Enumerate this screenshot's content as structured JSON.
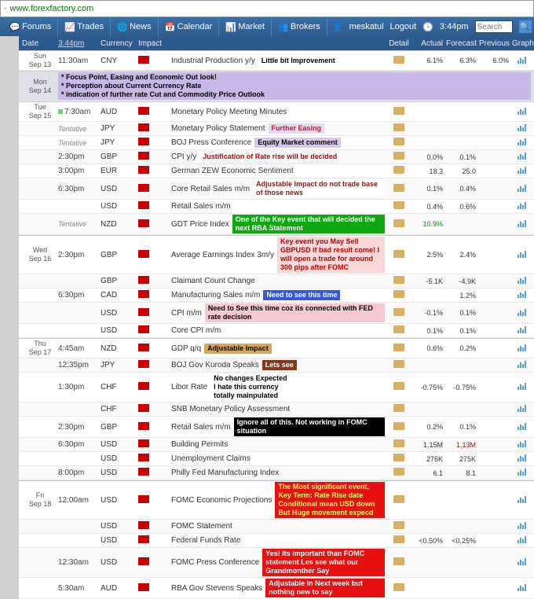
{
  "url": "www.forexfactory.com",
  "nav": {
    "items": [
      "Forums",
      "Trades",
      "News",
      "Calendar",
      "Market",
      "Brokers"
    ],
    "user": "meskatul",
    "logout": "Logout",
    "time": "3:44pm",
    "search_placeholder": "Search"
  },
  "columns": {
    "date": "Date",
    "time": "3:44pm",
    "currency": "Currency",
    "impact": "Impact",
    "detail": "Detail",
    "actual": "Actual",
    "forecast": "Forecast",
    "previous": "Previous",
    "graph": "Graph"
  },
  "days": [
    {
      "wd": "Sun",
      "dt": "Sep 13",
      "rows": [
        {
          "time": "11:30am",
          "cur": "CNY",
          "imp": "red",
          "event": "Industrial Production y/y",
          "annot": {
            "text": "Little bit Improvement",
            "bg": "#ffffff",
            "fg": "#000000",
            "bold": true
          },
          "actual": "6.1%",
          "forecast": "6.3%",
          "previous": "6.0%"
        }
      ]
    },
    {
      "wd": "Mon",
      "dt": "Sep 14",
      "mon": true,
      "rows": [
        {
          "annot_only": true,
          "annot": {
            "text": "* Focus Point, Easing and Economic Out look!\n* Perception about Current Currency Rate\n* indication of further rate Cut and Commodity Price Outlook",
            "bg": "#c8b8e8",
            "fg": "#000000"
          }
        }
      ]
    },
    {
      "wd": "Tue",
      "dt": "Sep 15",
      "rows": [
        {
          "time": "7:30am",
          "dot": "#7c7",
          "cur": "AUD",
          "imp": "red",
          "event": "Monetary Policy Meeting Minutes"
        },
        {
          "time": "Tentative",
          "tent": true,
          "cur": "JPY",
          "imp": "red",
          "event": "Monetary Policy Statement",
          "annot": {
            "text": "Further Easing",
            "bg": "#e8d8f0",
            "fg": "#c02020"
          }
        },
        {
          "time": "Tentative",
          "tent": true,
          "cur": "JPY",
          "imp": "red",
          "event": "BOJ Press Conference",
          "annot": {
            "text": "Equity Market comment",
            "bg": "#d8c8e8",
            "fg": "#000000"
          }
        },
        {
          "time": "2:30pm",
          "cur": "GBP",
          "imp": "red",
          "event": "CPI y/y",
          "annot": {
            "text": "Justification of Rate rise will be decided",
            "bg": "#ffffff",
            "fg": "#c00000"
          },
          "actual": "0.0%",
          "forecast": "0.1%"
        },
        {
          "time": "3:00pm",
          "cur": "EUR",
          "imp": "red",
          "event": "German ZEW Economic Sentiment",
          "actual": "18.3",
          "forecast": "25.0"
        },
        {
          "time": "6:30pm",
          "cur": "USD",
          "imp": "red",
          "event": "Core Retail Sales m/m",
          "annot": {
            "text": "Adjustable Impact  do not trade base of those news",
            "bg": "#ffffff",
            "fg": "#8a1a1a"
          },
          "actual": "0.1%",
          "forecast": "0.4%"
        },
        {
          "time": "",
          "cur": "USD",
          "imp": "red",
          "event": "Retail Sales m/m",
          "actual": "0.4%",
          "forecast": "0.6%"
        },
        {
          "time": "Tentative",
          "tent": true,
          "cur": "NZD",
          "imp": "red",
          "event": "GDT Price Index",
          "annot": {
            "text": "One of the Key event that will decided the next RBA Statement",
            "bg": "#10a810",
            "fg": "#ffffff"
          },
          "actual": "10.9%",
          "ac_green": true
        }
      ]
    },
    {
      "wd": "Wed",
      "dt": "Sep 16",
      "rows": [
        {
          "time": "2:30pm",
          "cur": "GBP",
          "imp": "red",
          "event": "Average Earnings Index 3m/y",
          "annot": {
            "text": "Key event you May Sell GBPUSD if bad result come! I will open a trade for around 300 pips after FOMC",
            "bg": "#f8d8d8",
            "fg": "#c00000"
          },
          "actual": "2.5%",
          "forecast": "2.4%"
        },
        {
          "time": "",
          "cur": "GBP",
          "imp": "red",
          "event": "Claimant Count Change",
          "actual": "-5.1K",
          "forecast": "-4.9K"
        },
        {
          "time": "6:30pm",
          "cur": "CAD",
          "imp": "red",
          "event": "Manufacturing Sales m/m",
          "annot": {
            "text": "Need to see this time",
            "bg": "#3858d8",
            "fg": "#ffffff"
          },
          "forecast": "1.2%"
        },
        {
          "time": "",
          "cur": "USD",
          "imp": "red",
          "event": "CPI m/m",
          "annot": {
            "text": "Need to See this time coz its connected with FED rate decision",
            "bg": "#f8c8d0",
            "fg": "#000000"
          },
          "actual": "-0.1%",
          "forecast": "0.1%"
        },
        {
          "time": "",
          "cur": "USD",
          "imp": "red",
          "event": "Core CPI m/m",
          "actual": "0.1%",
          "forecast": "0.1%"
        }
      ]
    },
    {
      "wd": "Thu",
      "dt": "Sep 17",
      "rows": [
        {
          "time": "4:45am",
          "cur": "NZD",
          "imp": "red",
          "event": "GDP q/q",
          "annot": {
            "text": "Adjustable Impact",
            "bg": "#d8a858",
            "fg": "#000000"
          },
          "actual": "0.6%",
          "forecast": "0.2%"
        },
        {
          "time": "12:35pm",
          "cur": "JPY",
          "imp": "red",
          "event": "BOJ Gov Kuroda Speaks",
          "annot": {
            "text": "Lets see",
            "bg": "#883818",
            "fg": "#ffffff"
          }
        },
        {
          "time": "1:30pm",
          "cur": "CHF",
          "imp": "red",
          "event": "Libor Rate",
          "annot": {
            "text": "No changes Expected\nI hate this currency\ntotally mainpulated",
            "bg": "#ffffff",
            "fg": "#000000"
          },
          "actual": "-0.75%",
          "forecast": "-0.75%"
        },
        {
          "time": "",
          "cur": "CHF",
          "imp": "red",
          "event": "SNB Monetary Policy Assessment"
        },
        {
          "time": "2:30pm",
          "cur": "GBP",
          "imp": "red",
          "event": "Retail Sales m/m",
          "annot": {
            "text": " Ignore all of this. Not working in FOMC situation",
            "bg": "#000000",
            "fg": "#ffffff"
          },
          "actual": "0.2%",
          "forecast": "0.1%"
        },
        {
          "time": "6:30pm",
          "cur": "USD",
          "imp": "red",
          "event": "Building Permits",
          "actual": "1.15M",
          "forecast": "1.13M",
          "fc_red": true
        },
        {
          "time": "",
          "cur": "USD",
          "imp": "red",
          "event": "Unemployment Claims",
          "actual": "276K",
          "forecast": "275K"
        },
        {
          "time": "8:00pm",
          "cur": "USD",
          "imp": "red",
          "event": "Philly Fed Manufacturing Index",
          "actual": "6.1",
          "forecast": "8.1"
        }
      ]
    },
    {
      "wd": "Fri",
      "dt": "Sep 18",
      "rows": [
        {
          "time": "12:00am",
          "cur": "USD",
          "imp": "red",
          "event": "FOMC Economic Projections",
          "annot": {
            "text": "The Most significant event,\nKey Term: Rate Rise date  Conditional mean USD down\nBut Huge movement expecd",
            "bg": "#e81010",
            "fg": "#ffff60"
          }
        },
        {
          "time": "",
          "cur": "USD",
          "imp": "red",
          "event": "FOMC Statement"
        },
        {
          "time": "",
          "cur": "USD",
          "imp": "red",
          "event": "Federal Funds Rate",
          "actual": "<0.50%",
          "forecast": "<0.25%"
        },
        {
          "time": "12:30am",
          "cur": "USD",
          "imp": "red",
          "event": "FOMC Press Conference",
          "annot": {
            "text": "Yes! Its important than FOMC statement Les see what our Grandmonther Say",
            "bg": "#e81010",
            "fg": "#ffffff"
          }
        },
        {
          "time": "5:30am",
          "cur": "AUD",
          "imp": "red",
          "event": "RBA Gov Stevens Speaks",
          "annot": {
            "text": "Adjustable in Next week but nothing new to say",
            "bg": "#e81010",
            "fg": "#ffffff"
          }
        }
      ]
    }
  ]
}
